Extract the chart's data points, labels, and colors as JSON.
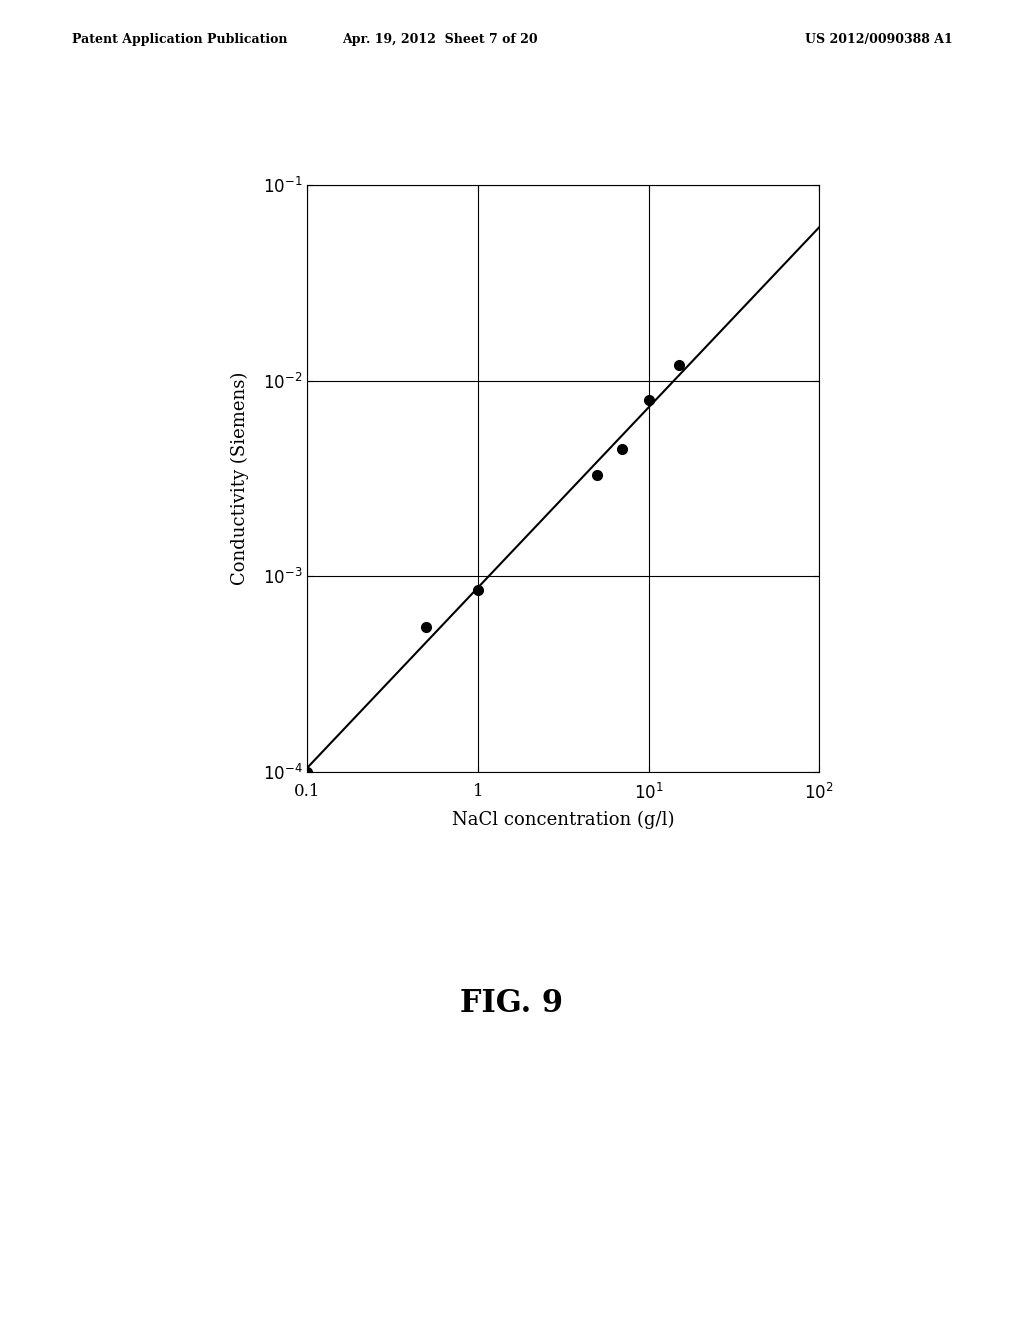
{
  "data_x": [
    0.1,
    0.5,
    1.0,
    5.0,
    7.0,
    10.0,
    15.0
  ],
  "data_y": [
    0.0001,
    0.00055,
    0.00085,
    0.0033,
    0.0045,
    0.008,
    0.012
  ],
  "xlabel": "NaCl concentration (g/l)",
  "ylabel": "Conductivity (Siemens)",
  "figure_label": "FIG. 9",
  "xlim": [
    0.1,
    100
  ],
  "ylim": [
    0.0001,
    0.1
  ],
  "header_left": "Patent Application Publication",
  "header_mid": "Apr. 19, 2012  Sheet 7 of 20",
  "header_right": "US 2012/0090388 A1",
  "ytick_vals": [
    0.0001,
    0.001,
    0.01,
    0.1
  ],
  "xtick_vals": [
    0.1,
    1,
    10,
    100
  ],
  "background_color": "#ffffff",
  "line_color": "#000000",
  "marker_color": "#000000",
  "grid_color": "#000000",
  "text_color": "#000000",
  "header_fontsize": 9,
  "axis_label_fontsize": 13,
  "tick_label_fontsize": 12,
  "figure_label_fontsize": 22,
  "marker_size": 7,
  "line_width": 1.5
}
